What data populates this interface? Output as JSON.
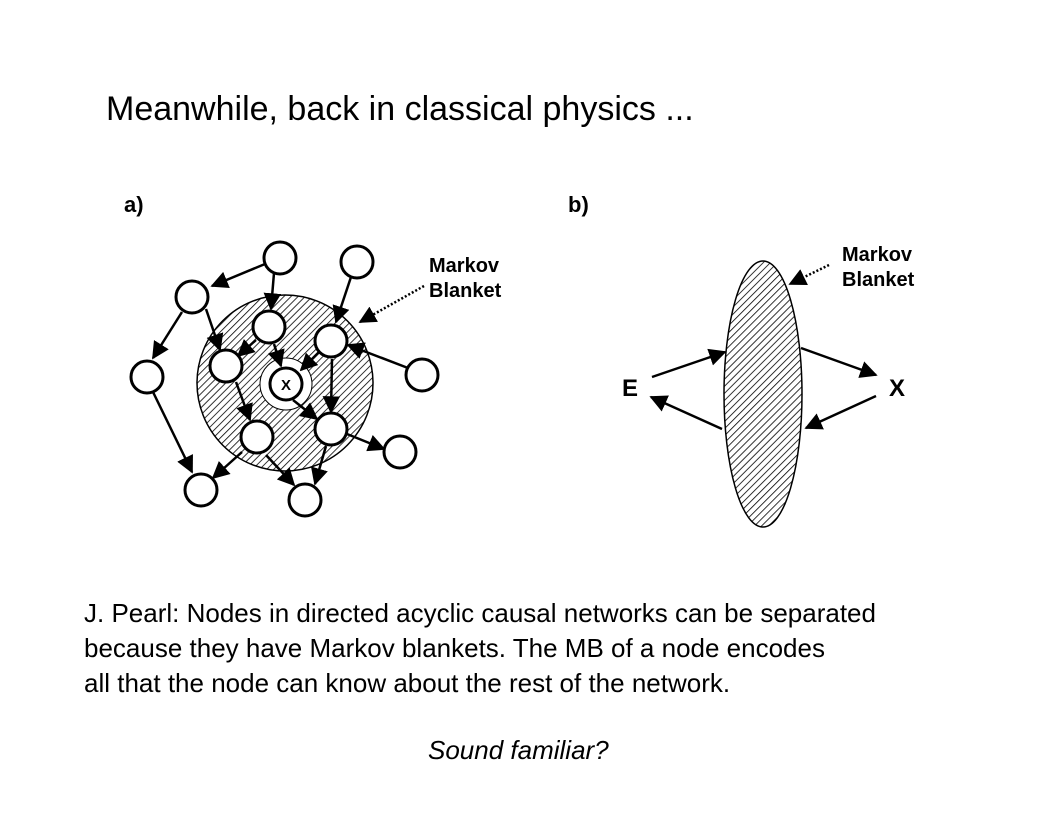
{
  "slide": {
    "title": "Meanwhile, back in classical physics ...",
    "caption_lines": [
      "J. Pearl: Nodes in directed acyclic causal networks can be separated",
      "because they have Markov blankets.  The MB of a node encodes",
      "all that the node can know about the rest of the network."
    ],
    "closing": "Sound familiar?"
  },
  "panel_a": {
    "label": "a)",
    "blanket_label_lines": [
      "Markov",
      "Blanket"
    ],
    "center_node": "X"
  },
  "panel_b": {
    "label": "b)",
    "blanket_label_lines": [
      "Markov",
      "Blanket"
    ],
    "left_node": "E",
    "right_node": "X"
  }
}
